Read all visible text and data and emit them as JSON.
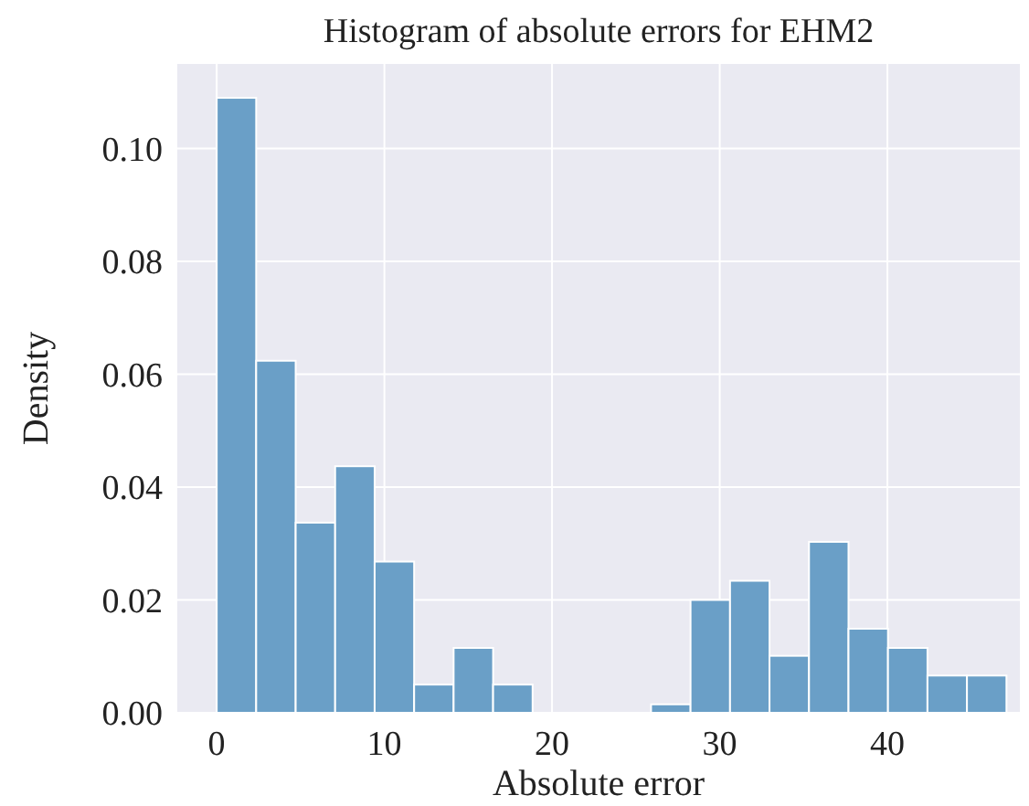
{
  "chart_data": {
    "type": "histogram",
    "title": "Histogram of absolute errors for EHM2",
    "xlabel": "Absolute error",
    "ylabel": "Density",
    "bins": [
      0,
      2.355,
      4.71,
      7.065,
      9.42,
      11.775,
      14.13,
      16.485,
      18.84,
      21.195,
      23.55,
      25.905,
      28.26,
      30.615,
      32.97,
      35.325,
      37.68,
      40.035,
      42.39,
      44.745,
      47.1
    ],
    "values": [
      0.109,
      0.0624,
      0.0337,
      0.0437,
      0.0268,
      0.005,
      0.0115,
      0.005,
      0,
      0,
      0,
      0.0015,
      0.02,
      0.0234,
      0.0101,
      0.0303,
      0.0149,
      0.0115,
      0.0066,
      0.0066
    ],
    "color": "#6a9fc7",
    "xlim": [
      -2.35,
      47.9
    ],
    "ylim": [
      0,
      0.115
    ],
    "xticks": [
      0,
      10,
      20,
      30,
      40
    ],
    "yticks": [
      {
        "value": 0,
        "label": "0.00"
      },
      {
        "value": 0.02,
        "label": "0.02"
      },
      {
        "value": 0.04,
        "label": "0.04"
      },
      {
        "value": 0.06,
        "label": "0.06"
      },
      {
        "value": 0.08,
        "label": "0.08"
      },
      {
        "value": 0.1,
        "label": "0.10"
      }
    ],
    "grid": true
  }
}
